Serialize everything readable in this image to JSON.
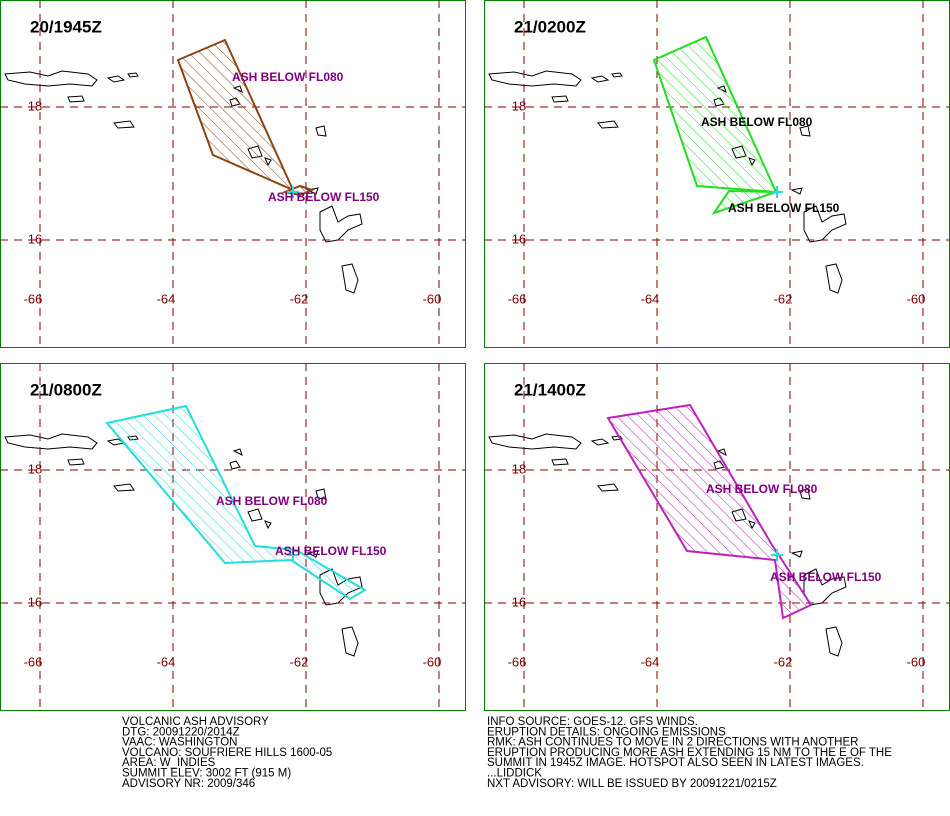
{
  "panels": [
    {
      "time": "20/1945Z",
      "labels": [
        "ASH BELOW FL080",
        "ASH BELOW FL150"
      ]
    },
    {
      "time": "21/0200Z",
      "labels": [
        "ASH BELOW FL080",
        "ASH BELOW FL150"
      ]
    },
    {
      "time": "21/0800Z",
      "labels": [
        "ASH BELOW FL080",
        "ASH BELOW FL150"
      ]
    },
    {
      "time": "21/1400Z",
      "labels": [
        "ASH BELOW FL080",
        "ASH BELOW FL150"
      ]
    }
  ],
  "map": {
    "lon_ticks": [
      -66,
      -64,
      -62,
      -60
    ],
    "lat_ticks": [
      18,
      16
    ]
  },
  "advisory": {
    "left": [
      "VOLCANIC ASH ADVISORY",
      "DTG: 20091220/2014Z",
      "VAAC: WASHINGTON",
      "VOLCANO: SOUFRIERE HILLS 1600-05",
      "AREA: W_INDIES",
      "SUMMIT ELEV: 3002 FT (915 M)",
      "ADVISORY NR: 2009/346"
    ],
    "right": [
      "INFO SOURCE: GOES-12. GFS WINDS.",
      "ERUPTION DETAILS: ONGOING EMISSIONS",
      "RMK: ASH CONTINUES TO MOVE IN 2 DIRECTIONS WITH ANOTHER",
      "ERUPTION PRODUCING MORE ASH EXTENDING 15 NM TO THE E OF THE",
      "SUMMIT IN 1945Z IMAGE. HOTSPOT ALSO SEEN IN LATEST IMAGES.",
      "...LIDDICK",
      "NXT ADVISORY: WILL BE ISSUED BY 20091221/0215Z"
    ]
  }
}
